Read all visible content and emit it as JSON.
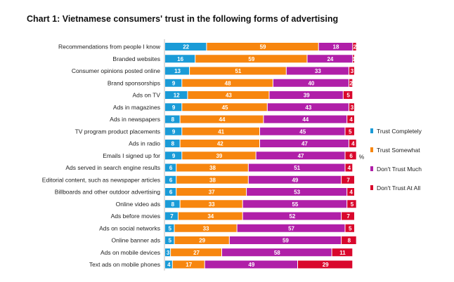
{
  "chart_data": {
    "type": "bar",
    "stacked": true,
    "orientation": "horizontal",
    "title": "Chart 1: Vietnamese consumers' trust in the following forms of advertising",
    "unit_label": "%",
    "legend_position": "right",
    "categories": [
      "Recommendations from people I know",
      "Branded websites",
      "Consumer opinions posted online",
      "Brand sponsorships",
      "Ads on TV",
      "Ads in magazines",
      "Ads in newspapers",
      "TV program product placements",
      "Ads in radio",
      "Emails I signed up for",
      "Ads served in search engine results",
      "Editorial content, such as newspaper articles",
      "Billboards and other outdoor advertising",
      "Online video ads",
      "Ads before movies",
      "Ads on social networks",
      "Online banner ads",
      "Ads on mobile devices",
      "Text ads on mobile phones"
    ],
    "series": [
      {
        "name": "Trust Completely",
        "color": "#1a9bd7",
        "values": [
          22,
          16,
          13,
          9,
          12,
          9,
          8,
          9,
          8,
          9,
          6,
          6,
          6,
          8,
          7,
          5,
          5,
          3,
          4
        ]
      },
      {
        "name": "Trust Somewhat",
        "color": "#f7860f",
        "values": [
          59,
          59,
          51,
          48,
          43,
          45,
          44,
          41,
          42,
          39,
          38,
          38,
          37,
          33,
          34,
          33,
          29,
          27,
          17
        ]
      },
      {
        "name": "Don't Trust Much",
        "color": "#b01fa8",
        "values": [
          18,
          24,
          33,
          40,
          39,
          43,
          44,
          45,
          47,
          47,
          51,
          49,
          53,
          55,
          52,
          57,
          59,
          58,
          49
        ]
      },
      {
        "name": "Don't Trust At All",
        "color": "#d9072c",
        "values": [
          2,
          1,
          3,
          2,
          5,
          3,
          4,
          5,
          4,
          6,
          4,
          7,
          4,
          5,
          7,
          5,
          8,
          11,
          29
        ]
      }
    ]
  }
}
